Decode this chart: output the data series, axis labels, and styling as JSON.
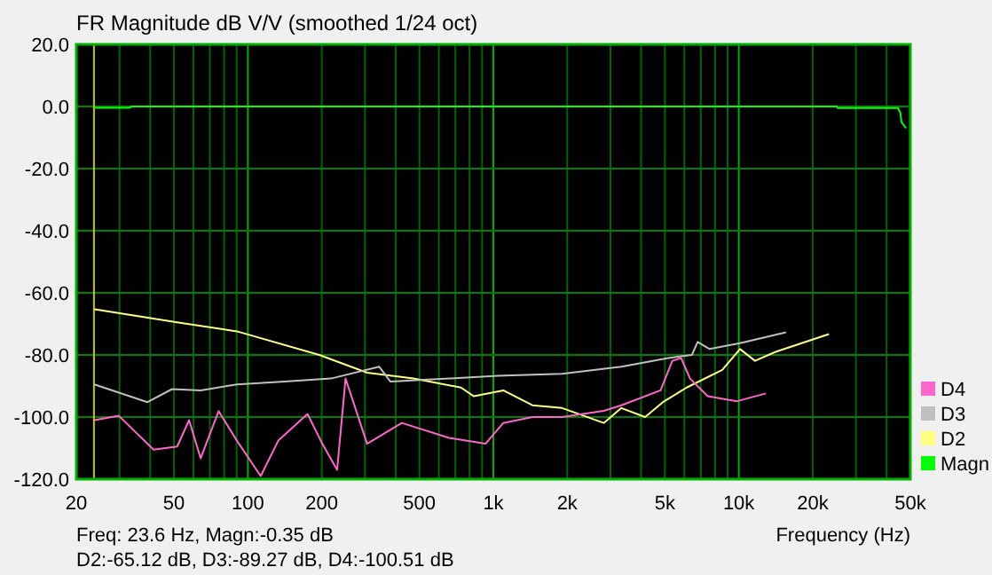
{
  "chart_data": {
    "type": "line",
    "title": "FR Magnitude dB V/V (smoothed 1/24 oct)",
    "xlabel": "Frequency (Hz)",
    "log": "x",
    "grid": true,
    "legend": "bottom right",
    "tick_labels": null,
    "xlim": [
      20,
      50000
    ],
    "ylim": [
      -120,
      20
    ],
    "xticks": [
      20,
      {
        "value": 30,
        "label": null
      },
      {
        "value": 40,
        "label": null
      },
      50,
      {
        "value": 60,
        "label": null
      },
      {
        "value": 70,
        "label": null
      },
      {
        "value": 80,
        "label": null
      },
      {
        "value": 90,
        "label": null
      },
      100,
      200,
      {
        "value": 300,
        "label": null
      },
      {
        "value": 400,
        "label": null
      },
      500,
      {
        "value": 600,
        "label": null
      },
      {
        "value": 700,
        "label": null
      },
      {
        "value": 800,
        "label": null
      },
      {
        "value": 900,
        "label": null
      },
      {
        "value": 1000,
        "label": "1k"
      },
      {
        "value": 2000,
        "label": "2k"
      },
      {
        "value": 3000,
        "label": null
      },
      {
        "value": 4000,
        "label": null
      },
      {
        "value": 5000,
        "label": "5k"
      },
      {
        "value": 6000,
        "label": null
      },
      {
        "value": 7000,
        "label": null
      },
      {
        "value": 8000,
        "label": null
      },
      {
        "value": 9000,
        "label": null
      },
      {
        "value": 10000,
        "label": "10k"
      },
      {
        "value": 20000,
        "label": "20k"
      },
      {
        "value": 30000,
        "label": null
      },
      {
        "value": 40000,
        "label": null
      },
      {
        "value": 50000,
        "label": "50k"
      }
    ],
    "yticks": [
      {
        "value": 20,
        "label": "20.0"
      },
      {
        "value": 0,
        "label": "0.0"
      },
      {
        "value": -20,
        "label": "-20.0"
      },
      {
        "value": -40,
        "label": "-40.0"
      },
      {
        "value": -60,
        "label": "-60.0"
      },
      {
        "value": -80,
        "label": "-80.0"
      },
      {
        "value": -100,
        "label": "-100.0"
      },
      {
        "value": -120,
        "label": "-120.0"
      }
    ],
    "ref_lines": [
      {
        "axis": "x",
        "value": 23.6,
        "color": "#c8c800"
      }
    ],
    "annotations": [
      "Freq: 23.6 Hz, Magn:-0.35 dB",
      "D2:-65.12 dB, D3:-89.27 dB, D4:-100.51 dB"
    ],
    "series": [
      {
        "name": "D4",
        "color": "#ff66cc",
        "x": [
          23.7,
          29.8,
          41.3,
          51.5,
          57.6,
          64.2,
          76,
          90.2,
          112.8,
          133,
          175,
          201,
          231,
          250,
          306,
          424,
          660,
          929,
          1098,
          1442,
          1906,
          2818,
          3323,
          4802,
          5360,
          5820,
          6330,
          7470,
          9830,
          12910
        ],
        "values": [
          -101,
          -99.6,
          -110.5,
          -109.5,
          -101,
          -113.3,
          -98.1,
          -107.6,
          -119,
          -107.6,
          -99,
          -108.6,
          -117,
          -87.6,
          -108.6,
          -101.9,
          -106.7,
          -108.6,
          -101.9,
          -100,
          -100,
          -98,
          -96.2,
          -91.4,
          -81.9,
          -81,
          -87.6,
          -93.3,
          -94.9,
          -92.4
        ]
      },
      {
        "name": "D3",
        "color": "#c0c0c0",
        "x": [
          23.7,
          39,
          49.1,
          64.2,
          90.2,
          140.8,
          218,
          343,
          381,
          660,
          1040,
          1906,
          3323,
          5160,
          6440,
          6800,
          7600,
          10112,
          15570
        ],
        "values": [
          -89.5,
          -95.2,
          -91,
          -91.4,
          -89.5,
          -88.6,
          -87.6,
          -83.8,
          -88.6,
          -87.6,
          -86.7,
          -86.1,
          -83.8,
          -81,
          -80,
          -75.8,
          -78.1,
          -76.2,
          -72.7
        ]
      },
      {
        "name": "D2",
        "color": "#ffff80",
        "x": [
          23.7,
          51.5,
          90.2,
          195.5,
          306,
          473,
          738,
          833,
          1098,
          1442,
          1906,
          2818,
          3323,
          4152,
          4906,
          6131,
          8563,
          10112,
          11640,
          14130,
          23300
        ],
        "values": [
          -65.3,
          -69.5,
          -72.4,
          -80,
          -85.7,
          -87.6,
          -90.5,
          -93.3,
          -91.4,
          -96.2,
          -97.1,
          -101.9,
          -97.1,
          -100,
          -95.2,
          -90.5,
          -84.8,
          -78.1,
          -81.9,
          -79,
          -73.3
        ]
      },
      {
        "name": "Magn",
        "color": "#00ff00",
        "x": [
          23.6,
          33,
          33.5,
          25000,
          25300,
          44500,
          45500,
          46000,
          48000
        ],
        "values": [
          -0.4,
          -0.4,
          0,
          0,
          -0.5,
          -0.5,
          -2,
          -5,
          -7
        ]
      }
    ]
  }
}
